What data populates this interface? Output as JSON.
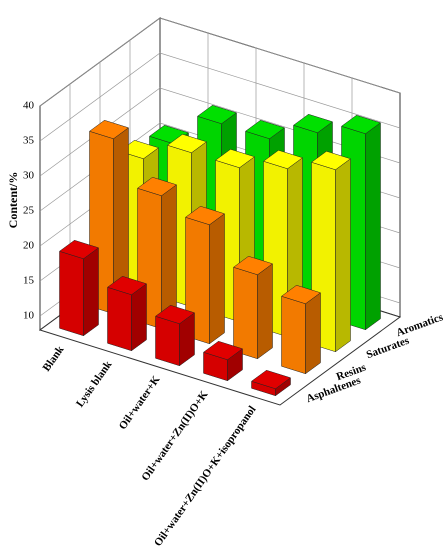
{
  "chart_data": {
    "type": "bar3d",
    "z_label": "Content/%",
    "categories": [
      "Blank",
      "Lysis blank",
      "Oil+water+K",
      "Oil+water+Zn(II)O+K",
      "Oil+water+Zn(II)O+K+isopropanol"
    ],
    "series": [
      {
        "name": "Asphaltenes",
        "color": "#e00000",
        "values": [
          19,
          16,
          14,
          11,
          9
        ]
      },
      {
        "name": "Resins",
        "color": "#ff8000",
        "values": [
          33,
          27,
          25,
          20,
          18
        ]
      },
      {
        "name": "Saturates",
        "color": "#ffff00",
        "values": [
          27,
          30,
          30,
          32,
          34
        ]
      },
      {
        "name": "Aromatics",
        "color": "#00e000",
        "values": [
          26,
          31,
          31,
          34,
          36
        ]
      }
    ],
    "zlim": [
      8,
      40
    ],
    "zticks": [
      10,
      15,
      20,
      25,
      30,
      35,
      40
    ],
    "grid": true
  }
}
